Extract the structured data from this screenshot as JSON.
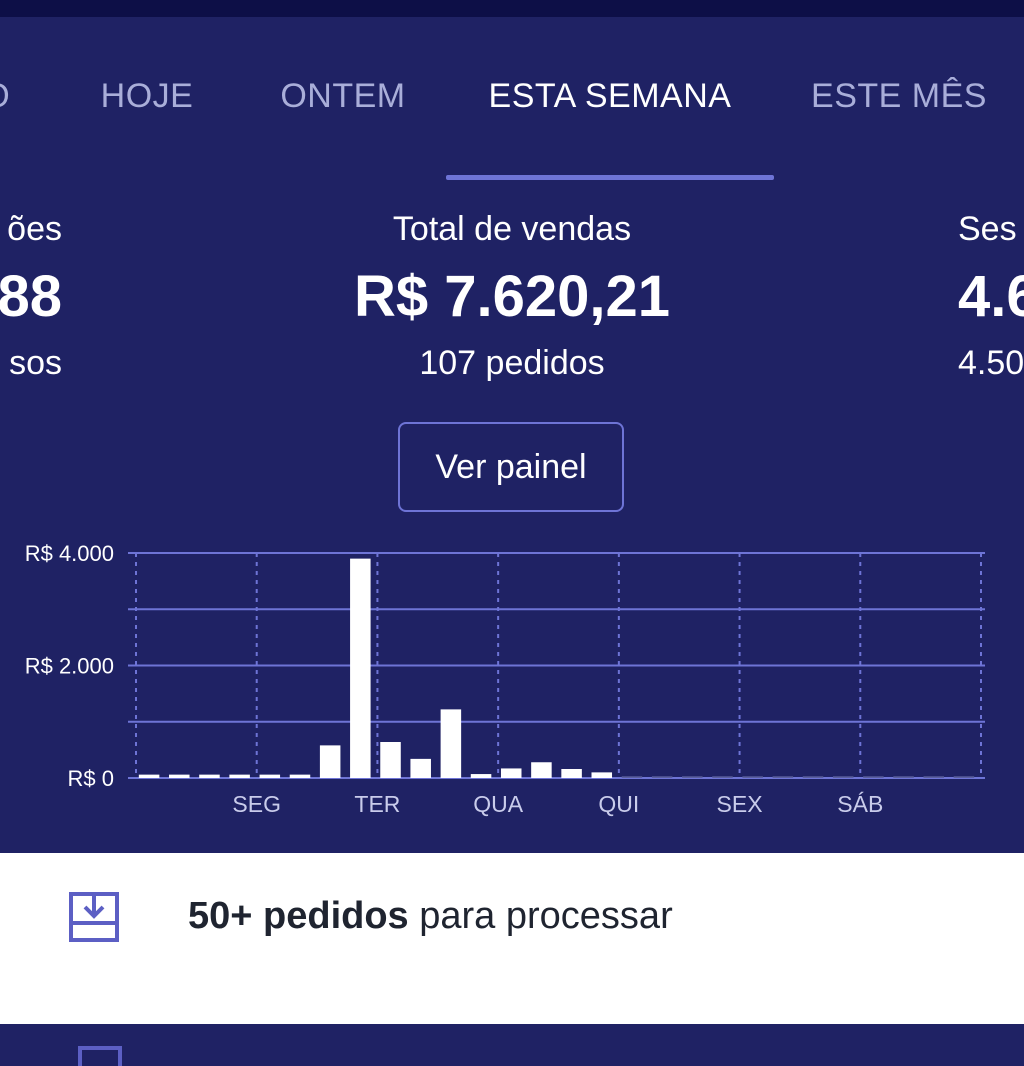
{
  "tabs": [
    {
      "label": "O",
      "active": false
    },
    {
      "label": "HOJE",
      "active": false
    },
    {
      "label": "ONTEM",
      "active": false
    },
    {
      "label": "ESTA SEMANA",
      "active": true
    },
    {
      "label": "ESTE MÊS",
      "active": false
    }
  ],
  "stats": {
    "left": {
      "label": "ões",
      "value": "88",
      "sub": "sos"
    },
    "center": {
      "label": "Total de vendas",
      "value": "R$ 7.620,21",
      "sub": "107 pedidos"
    },
    "right": {
      "label": "Ses",
      "value": "4.6",
      "sub": "4.50"
    }
  },
  "ver_painel": "Ver painel",
  "chart_data": {
    "type": "bar",
    "y_ticks": [
      "R$ 4.000",
      "R$ 2.000",
      "R$ 0"
    ],
    "y_tick_values": [
      4000,
      2000,
      0
    ],
    "ylim": [
      0,
      4000
    ],
    "day_labels": [
      "SEG",
      "TER",
      "QUA",
      "QUI",
      "SEX",
      "SÁB"
    ],
    "values": [
      60,
      60,
      60,
      60,
      60,
      60,
      580,
      3900,
      640,
      340,
      1220,
      70,
      170,
      280,
      160,
      100,
      30,
      30,
      30,
      30,
      30,
      30,
      30,
      30,
      30,
      30,
      30,
      30
    ],
    "grid": true,
    "colors": {
      "bar": "#ffffff",
      "bar_muted": "#5a5f9e",
      "grid": "#6e74d6"
    }
  },
  "notification": {
    "bold": "50+ pedidos",
    "rest": " para processar",
    "icon": "download-tray-icon"
  }
}
